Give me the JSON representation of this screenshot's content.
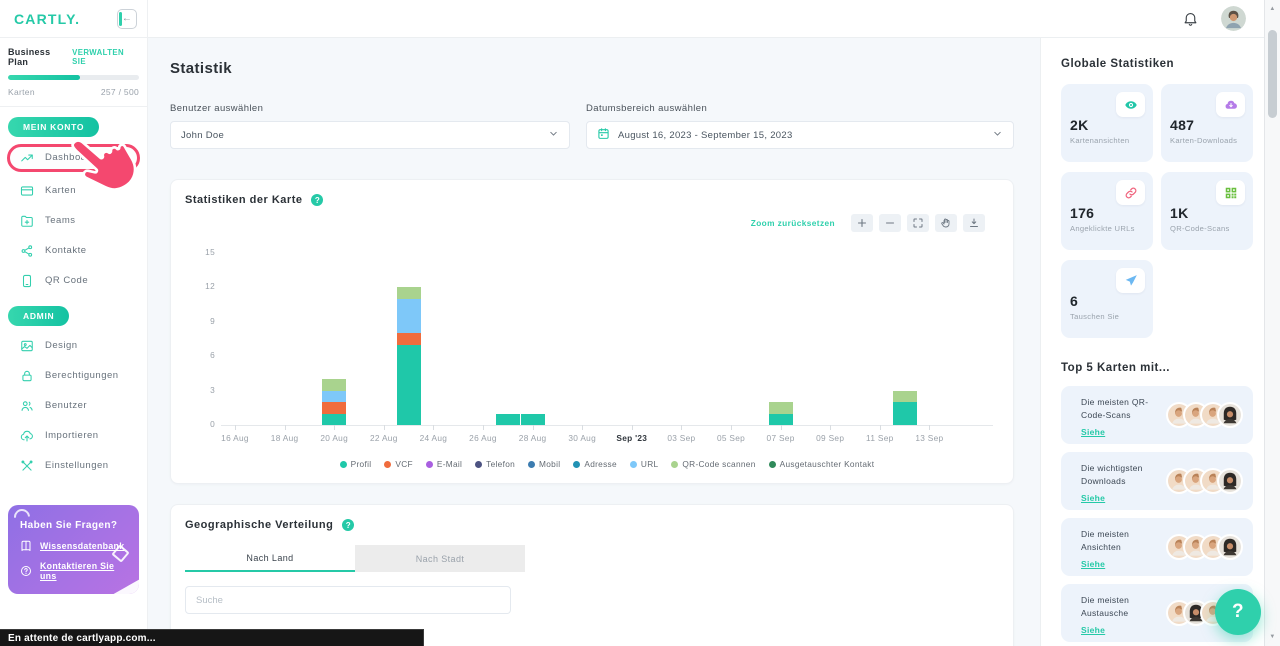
{
  "brand": {
    "logo": "CARTLY."
  },
  "plan": {
    "name": "Business Plan",
    "manage": "VERWALTEN SIE",
    "cards_label": "Karten",
    "cards_count": "257 / 500",
    "progress_pct": 55
  },
  "sidebar": {
    "sections": [
      {
        "label": "MEIN KONTO",
        "items": [
          {
            "label": "Dashboard",
            "icon": "trend",
            "active": true
          },
          {
            "label": "Karten",
            "icon": "card"
          },
          {
            "label": "Teams",
            "icon": "folder"
          },
          {
            "label": "Kontakte",
            "icon": "share"
          },
          {
            "label": "QR Code",
            "icon": "phone"
          }
        ]
      },
      {
        "label": "ADMIN",
        "items": [
          {
            "label": "Design",
            "icon": "image"
          },
          {
            "label": "Berechtigungen",
            "icon": "lock"
          },
          {
            "label": "Benutzer",
            "icon": "users"
          },
          {
            "label": "Importieren",
            "icon": "upload"
          },
          {
            "label": "Einstellungen",
            "icon": "tools"
          }
        ]
      }
    ],
    "help_card": {
      "title": "Haben Sie Fragen?",
      "links": [
        {
          "label": "Wissensdatenbank",
          "icon": "book"
        },
        {
          "label": "Kontaktieren Sie uns",
          "icon": "question"
        }
      ]
    }
  },
  "header": {
    "title": "Statistik"
  },
  "filters": {
    "user_label": "Benutzer auswählen",
    "user_value": "John Doe",
    "date_label": "Datumsbereich auswählen",
    "date_value": "August 16, 2023 - September 15, 2023"
  },
  "card_stats": {
    "title": "Statistiken der Karte",
    "reset_zoom": "Zoom zurücksetzen"
  },
  "chart_data": {
    "type": "bar",
    "stacked": true,
    "title": "Statistiken der Karte",
    "ylim": [
      0,
      15
    ],
    "y_ticks": [
      0,
      3,
      6,
      9,
      12,
      15
    ],
    "x_ticks": [
      "16 Aug",
      "18 Aug",
      "20 Aug",
      "22 Aug",
      "24 Aug",
      "26 Aug",
      "28 Aug",
      "30 Aug",
      "Sep '23",
      "03 Sep",
      "05 Sep",
      "07 Sep",
      "09 Sep",
      "11 Sep",
      "13 Sep"
    ],
    "x_range_days": 30,
    "legend_position": "bottom",
    "grid": false,
    "series_colors": {
      "Profil": "#1fc8a9",
      "VCF": "#f06c3d",
      "E-Mail": "#a95fe0",
      "Telefon": "#4d5382",
      "Mobil": "#3c7cb0",
      "Adresse": "#2292b4",
      "URL": "#7ec8f9",
      "QR-Code scannen": "#a9d38e",
      "Ausgetauschter Kontakt": "#2f8a5a"
    },
    "legend": [
      "Profil",
      "VCF",
      "E-Mail",
      "Telefon",
      "Mobil",
      "Adresse",
      "URL",
      "QR-Code scannen",
      "Ausgetauschter Kontakt"
    ],
    "bars": [
      {
        "date": "20 Aug",
        "day_index": 4,
        "stack": [
          [
            "Profil",
            1
          ],
          [
            "VCF",
            1
          ],
          [
            "URL",
            1
          ],
          [
            "QR-Code scannen",
            1
          ]
        ]
      },
      {
        "date": "23 Aug",
        "day_index": 7,
        "stack": [
          [
            "Profil",
            7
          ],
          [
            "VCF",
            1
          ],
          [
            "URL",
            3
          ],
          [
            "QR-Code scannen",
            1
          ]
        ]
      },
      {
        "date": "27 Aug",
        "day_index": 11,
        "stack": [
          [
            "Profil",
            1
          ]
        ]
      },
      {
        "date": "28 Aug",
        "day_index": 12,
        "stack": [
          [
            "Profil",
            1
          ]
        ]
      },
      {
        "date": "07 Sep",
        "day_index": 22,
        "stack": [
          [
            "Profil",
            1
          ],
          [
            "QR-Code scannen",
            1
          ]
        ]
      },
      {
        "date": "12 Sep",
        "day_index": 27,
        "stack": [
          [
            "Profil",
            2
          ],
          [
            "QR-Code scannen",
            1
          ]
        ]
      }
    ]
  },
  "geo": {
    "title": "Geographische Verteilung",
    "tabs": [
      "Nach Land",
      "Nach Stadt"
    ],
    "active_tab": 0,
    "search_placeholder": "Suche"
  },
  "global_stats": {
    "title": "Globale Statistiken",
    "cards": [
      {
        "value": "2K",
        "label": "Kartenansichten",
        "icon": "eye",
        "color": "#21c6a8"
      },
      {
        "value": "487",
        "label": "Karten-Downloads",
        "icon": "cloud",
        "color": "#b57be8"
      },
      {
        "value": "176",
        "label": "Angeklickte URLs",
        "icon": "link",
        "color": "#f0647e"
      },
      {
        "value": "1K",
        "label": "QR-Code-Scans",
        "icon": "qr",
        "color": "#6abf3f"
      },
      {
        "value": "6",
        "label": "Tauschen Sie",
        "icon": "send",
        "color": "#6cb8f2"
      }
    ]
  },
  "top5": {
    "title": "Top 5 Karten mit...",
    "cards": [
      {
        "label": "Die meisten QR-Code-Scans",
        "link": "Siehe",
        "avatars": [
          "tan",
          "tan",
          "tan",
          "woman"
        ]
      },
      {
        "label": "Die wichtigsten Downloads",
        "link": "Siehe",
        "avatars": [
          "tan",
          "tan",
          "tan",
          "woman"
        ]
      },
      {
        "label": "Die meisten Ansichten",
        "link": "Siehe",
        "avatars": [
          "tan",
          "tan",
          "tan",
          "woman"
        ]
      },
      {
        "label": "Die meisten Austausche",
        "link": "Siehe",
        "avatars": [
          "tan",
          "woman",
          "tan",
          "tan"
        ]
      }
    ]
  },
  "floating_help": "?",
  "status_bar": {
    "text": "En attente de cartlyapp.com..."
  },
  "colors": {
    "accent": "#25c9a7",
    "highlight": "#f4486f",
    "purple_card": "#9a72e5"
  }
}
